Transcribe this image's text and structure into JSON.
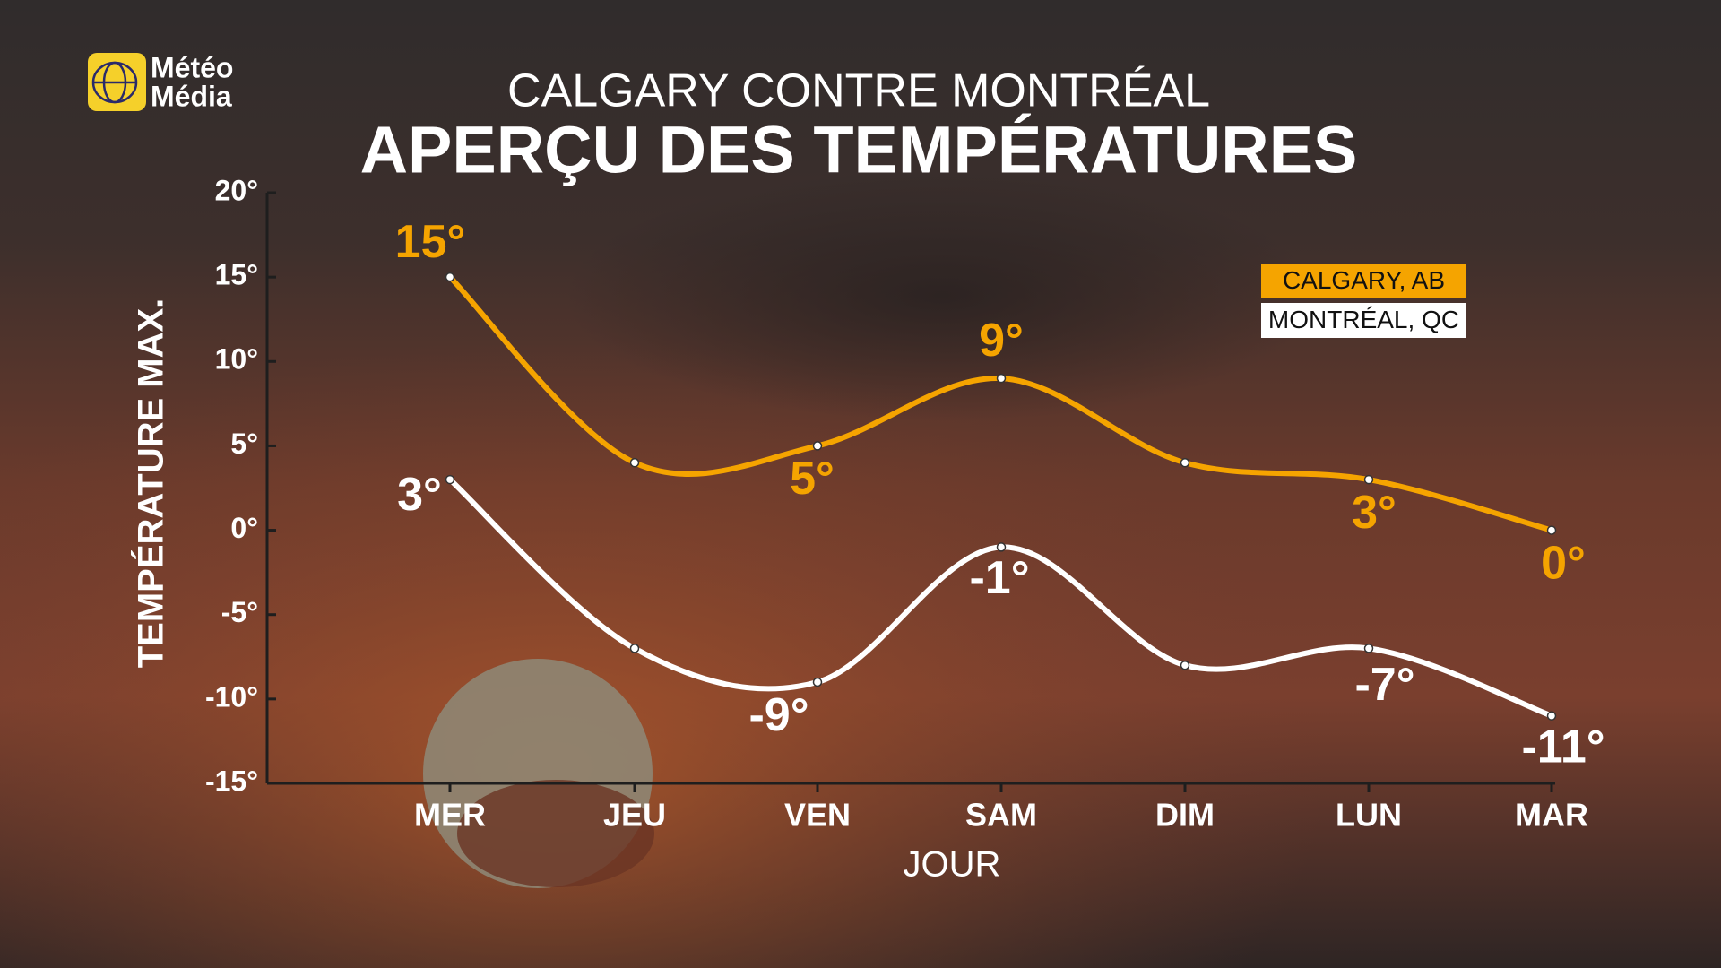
{
  "brand": [
    "Météo",
    "Média"
  ],
  "chart_data": {
    "type": "line",
    "subtitle": "CALGARY CONTRE MONTRÉAL",
    "title": "APERÇU DES TEMPÉRATURES",
    "x_label": "JOUR",
    "y_label": "TEMPÉRATURE MAX.",
    "categories": [
      "MER",
      "JEU",
      "VEN",
      "SAM",
      "DIM",
      "LUN",
      "MAR"
    ],
    "ylim": [
      -15,
      20
    ],
    "yticks": [
      {
        "value": -15,
        "label": "-15°"
      },
      {
        "value": -10,
        "label": "-10°"
      },
      {
        "value": -5,
        "label": "-5°"
      },
      {
        "value": 0,
        "label": "0°"
      },
      {
        "value": 5,
        "label": "5°"
      },
      {
        "value": 10,
        "label": "10°"
      },
      {
        "value": 15,
        "label": "15°"
      },
      {
        "value": 20,
        "label": "20°"
      }
    ],
    "grid": false,
    "legend": "upper right",
    "series": [
      {
        "name": "CALGARY, AB",
        "color": "#f5a400",
        "values": [
          15,
          4,
          5,
          9,
          4,
          3,
          0
        ],
        "value_labels": [
          "15°",
          null,
          "5°",
          "9°",
          null,
          "3°",
          "0°"
        ]
      },
      {
        "name": "MONTRÉAL, QC",
        "color": "#ffffff",
        "values": [
          3,
          -7,
          -9,
          -1,
          -8,
          -7,
          -11
        ],
        "value_labels": [
          "3°",
          null,
          "-9°",
          "-1°",
          null,
          "-7°",
          "-11°"
        ]
      }
    ]
  }
}
